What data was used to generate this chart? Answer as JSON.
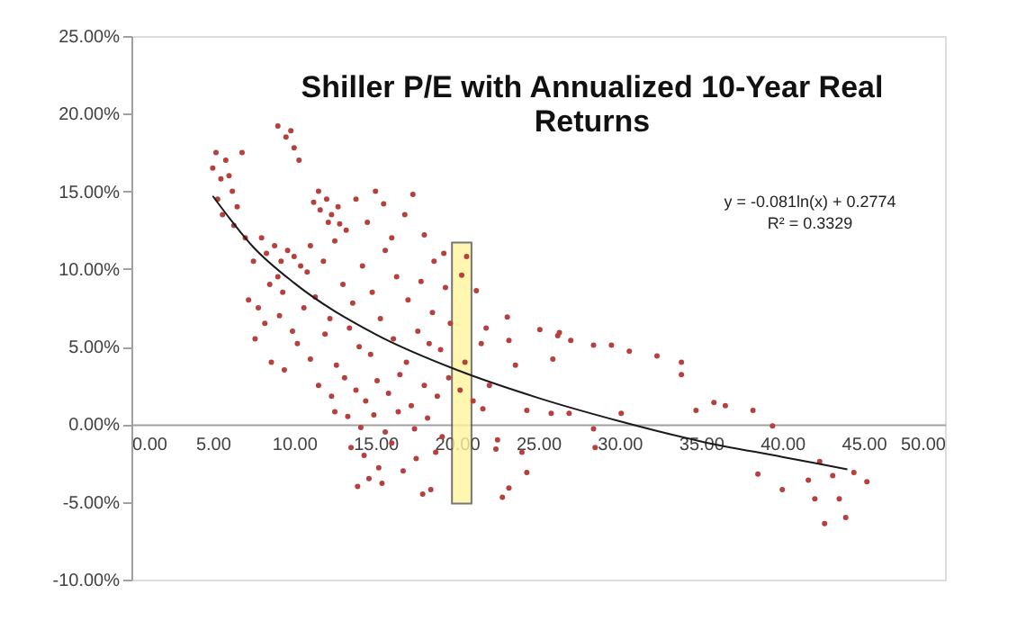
{
  "chart_data": {
    "type": "scatter",
    "title": "Shiller P/E with Annualized 10-Year Real Returns",
    "annotations": [
      "y = -0.081ln(x) + 0.2774",
      "R² = 0.3329"
    ],
    "xlim": [
      0,
      50
    ],
    "ylim": [
      -10,
      25
    ],
    "xticks": [
      {
        "value": 0,
        "label": "0.00"
      },
      {
        "value": 5,
        "label": "5.00"
      },
      {
        "value": 10,
        "label": "10.00"
      },
      {
        "value": 15,
        "label": "15.00"
      },
      {
        "value": 20,
        "label": "20.00"
      },
      {
        "value": 25,
        "label": "25.00"
      },
      {
        "value": 30,
        "label": "30.00"
      },
      {
        "value": 35,
        "label": "35.00"
      },
      {
        "value": 40,
        "label": "40.00"
      },
      {
        "value": 45,
        "label": "45.00"
      },
      {
        "value": 50,
        "label": "50.00"
      }
    ],
    "yticks": [
      {
        "value": -10,
        "label": "-10.00%"
      },
      {
        "value": -5,
        "label": "-5.00%"
      },
      {
        "value": 0,
        "label": "0.00%"
      },
      {
        "value": 5,
        "label": "5.00%"
      },
      {
        "value": 10,
        "label": "10.00%"
      },
      {
        "value": 15,
        "label": "15.00%"
      },
      {
        "value": 20,
        "label": "20.00%"
      },
      {
        "value": 25,
        "label": "25.00%"
      }
    ],
    "grid": false,
    "bands": [
      {
        "axis": "x",
        "from": 19.7,
        "to": 20.9,
        "color": "#fff59d"
      }
    ],
    "series": [
      {
        "marker": "circle",
        "color": "#b5413f",
        "x": [
          5.0,
          5.2,
          5.5,
          5.3,
          5.8,
          6.0,
          5.6,
          6.2,
          6.5,
          6.8,
          7.0,
          6.3,
          9.0,
          9.5,
          10.0,
          10.3,
          9.8,
          11.2,
          11.6,
          12.0,
          12.3,
          12.7,
          12.1,
          11.5,
          12.8,
          8.3,
          8.8,
          9.2,
          9.6,
          10.0,
          10.4,
          9.0,
          8.0,
          7.5,
          7.2,
          7.8,
          8.5,
          9.3,
          10.8,
          11.0,
          11.8,
          12.5,
          13.2,
          13.8,
          14.5,
          15.0,
          15.5,
          16.0,
          16.8,
          17.3,
          18.0,
          18.6,
          19.2,
          7.6,
          8.2,
          9.1,
          9.9,
          10.6,
          11.3,
          12.2,
          13.0,
          13.6,
          14.2,
          14.8,
          15.6,
          16.3,
          17.0,
          17.8,
          18.5,
          19.3,
          20.3,
          20.6,
          21.2,
          21.8,
          8.6,
          9.4,
          10.2,
          11.0,
          11.9,
          12.6,
          13.4,
          14.0,
          14.7,
          15.3,
          16.1,
          16.9,
          17.6,
          18.3,
          19.0,
          19.6,
          20.5,
          21.5,
          11.5,
          12.3,
          13.1,
          13.8,
          14.4,
          15.1,
          15.8,
          16.5,
          17.2,
          18.0,
          18.8,
          19.5,
          20.2,
          21.0,
          12.5,
          13.3,
          14.1,
          14.9,
          15.6,
          16.4,
          17.4,
          18.2,
          19.1,
          13.5,
          14.3,
          15.2,
          16.0,
          17.5,
          18.7,
          14.6,
          16.7,
          18.4,
          13.9,
          15.4,
          17.9,
          23.1,
          25.1,
          26.2,
          28.4,
          29.5,
          30.6,
          32.3,
          33.8,
          33.8,
          34.7,
          35.8,
          36.5,
          38.2,
          39.4,
          38.5,
          40.0,
          41.6,
          42.3,
          43.1,
          42.6,
          43.9,
          44.4,
          45.2,
          42.0,
          43.5,
          30.1,
          28.4,
          26.9,
          25.8,
          24.3,
          24.0,
          24.3,
          23.2,
          22.8,
          22.4,
          28.5,
          23.6,
          23.2,
          25.9,
          27.0,
          26.3,
          22.0,
          22.5,
          21.6
        ],
        "values": [
          16.5,
          17.5,
          15.8,
          14.5,
          17.0,
          16.0,
          13.5,
          15.0,
          14.0,
          17.5,
          12.0,
          12.8,
          19.2,
          18.5,
          17.8,
          17.0,
          18.9,
          14.3,
          13.8,
          14.5,
          13.5,
          14.0,
          13.0,
          15.0,
          12.9,
          11.0,
          11.5,
          10.5,
          11.2,
          10.8,
          10.2,
          9.5,
          12.0,
          10.5,
          8.0,
          7.5,
          9.0,
          8.5,
          9.8,
          11.5,
          10.5,
          11.8,
          12.5,
          14.5,
          13.0,
          15.0,
          14.2,
          12.0,
          13.5,
          14.8,
          12.2,
          10.5,
          11.0,
          5.5,
          6.5,
          7.0,
          6.0,
          7.5,
          8.2,
          6.8,
          9.0,
          7.8,
          10.2,
          8.5,
          11.2,
          9.5,
          8.0,
          9.2,
          7.2,
          8.8,
          9.6,
          10.8,
          8.6,
          6.2,
          4.0,
          3.5,
          5.2,
          4.2,
          5.8,
          3.8,
          6.2,
          5.0,
          4.5,
          6.8,
          5.5,
          4.0,
          6.0,
          5.2,
          4.8,
          6.5,
          4.0,
          5.2,
          2.5,
          1.8,
          3.0,
          2.2,
          1.5,
          2.8,
          2.0,
          3.2,
          1.2,
          2.5,
          1.8,
          3.0,
          2.2,
          1.5,
          0.8,
          0.5,
          -0.2,
          0.6,
          -0.5,
          0.8,
          -0.3,
          0.4,
          -0.8,
          -1.5,
          -2.0,
          -2.8,
          -1.2,
          -2.2,
          -1.8,
          -3.5,
          -3.0,
          -4.2,
          -4.0,
          -3.8,
          -4.5,
          6.9,
          6.1,
          5.7,
          5.1,
          5.1,
          4.7,
          4.4,
          4.0,
          3.2,
          0.9,
          1.4,
          1.2,
          0.9,
          -0.1,
          -3.2,
          -4.2,
          -3.6,
          -2.4,
          -3.3,
          -6.4,
          -6.0,
          -3.1,
          -3.7,
          -4.8,
          -4.8,
          0.7,
          -0.3,
          0.7,
          0.7,
          0.9,
          -1.8,
          -3.1,
          -4.1,
          -4.7,
          -1.6,
          -1.5,
          3.8,
          5.4,
          4.2,
          5.4,
          5.9,
          2.5,
          -1.0,
          1.0
        ]
      },
      {
        "type": "line",
        "color": "#1a1a1a",
        "x": [
          5,
          7.5,
          10,
          15,
          20,
          25,
          30,
          35,
          40,
          44
        ],
        "values": [
          14.7,
          11.4,
          9.1,
          5.8,
          3.5,
          1.7,
          0.2,
          -1.1,
          -2.1,
          -2.9
        ]
      }
    ]
  }
}
